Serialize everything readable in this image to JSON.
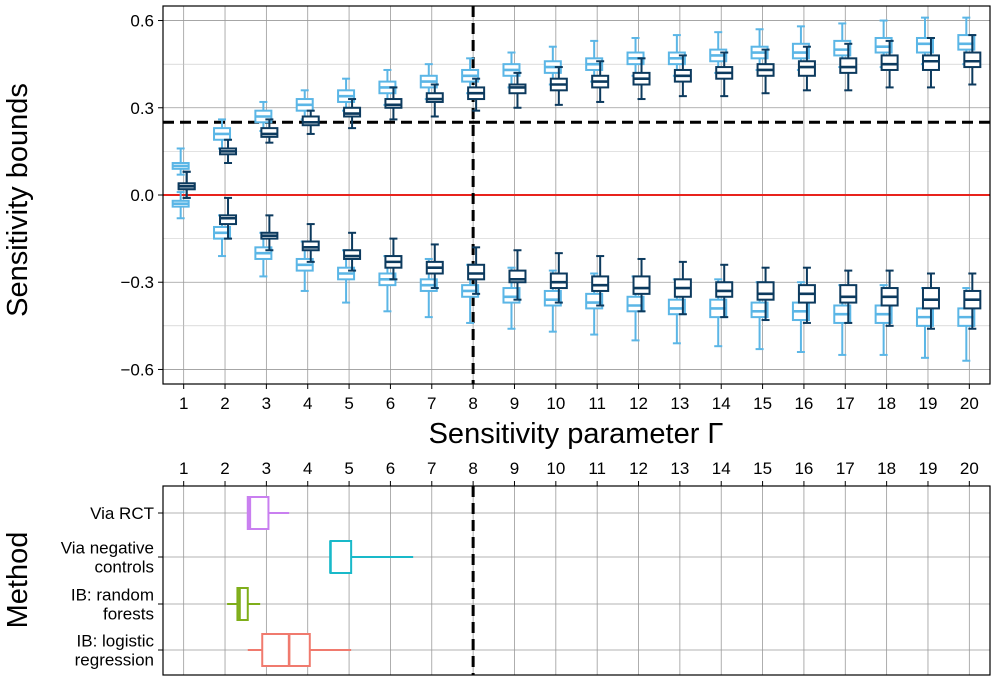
{
  "chart_data": [
    {
      "type": "boxplot",
      "title": "",
      "xlabel": "Sensitivity parameter Γ",
      "ylabel": "Sensitivity bounds",
      "categories": [
        1,
        2,
        3,
        4,
        5,
        6,
        7,
        8,
        9,
        10,
        11,
        12,
        13,
        14,
        15,
        16,
        17,
        18,
        19,
        20
      ],
      "ylim": [
        -0.65,
        0.65
      ],
      "yticks": [
        -0.6,
        -0.3,
        0.0,
        0.3,
        0.6
      ],
      "ytick_labels": [
        "−0.6",
        "−0.3",
        "0.0",
        "0.3",
        "0.6"
      ],
      "grid": true,
      "reference_lines": [
        {
          "orientation": "horizontal",
          "value": 0.25,
          "style": "dashed",
          "color": "#000000"
        },
        {
          "orientation": "horizontal",
          "value": 0.0,
          "style": "solid",
          "color": "#e8231c"
        },
        {
          "orientation": "vertical",
          "value": 8,
          "style": "dashed",
          "color": "#000000"
        }
      ],
      "series": [
        {
          "color": "#5bb6e6",
          "values": [
            {
              "upper": [
                0.07,
                0.09,
                0.1,
                0.11,
                0.16
              ],
              "lower": [
                -0.08,
                -0.04,
                -0.03,
                -0.02,
                0.01
              ]
            },
            {
              "upper": [
                0.16,
                0.19,
                0.21,
                0.23,
                0.26
              ],
              "lower": [
                -0.21,
                -0.15,
                -0.13,
                -0.11,
                -0.07
              ]
            },
            {
              "upper": [
                0.22,
                0.25,
                0.27,
                0.29,
                0.32
              ],
              "lower": [
                -0.28,
                -0.22,
                -0.2,
                -0.18,
                -0.13
              ]
            },
            {
              "upper": [
                0.26,
                0.29,
                0.31,
                0.33,
                0.36
              ],
              "lower": [
                -0.33,
                -0.26,
                -0.24,
                -0.22,
                -0.16
              ]
            },
            {
              "upper": [
                0.29,
                0.32,
                0.34,
                0.36,
                0.4
              ],
              "lower": [
                -0.37,
                -0.29,
                -0.27,
                -0.25,
                -0.19
              ]
            },
            {
              "upper": [
                0.31,
                0.35,
                0.37,
                0.39,
                0.43
              ],
              "lower": [
                -0.4,
                -0.31,
                -0.29,
                -0.27,
                -0.21
              ]
            },
            {
              "upper": [
                0.33,
                0.37,
                0.39,
                0.41,
                0.45
              ],
              "lower": [
                -0.42,
                -0.33,
                -0.31,
                -0.29,
                -0.22
              ]
            },
            {
              "upper": [
                0.35,
                0.39,
                0.41,
                0.43,
                0.47
              ],
              "lower": [
                -0.44,
                -0.35,
                -0.33,
                -0.31,
                -0.24
              ]
            },
            {
              "upper": [
                0.37,
                0.41,
                0.43,
                0.45,
                0.49
              ],
              "lower": [
                -0.46,
                -0.37,
                -0.35,
                -0.32,
                -0.25
              ]
            },
            {
              "upper": [
                0.38,
                0.42,
                0.44,
                0.46,
                0.51
              ],
              "lower": [
                -0.47,
                -0.38,
                -0.36,
                -0.33,
                -0.26
              ]
            },
            {
              "upper": [
                0.39,
                0.43,
                0.45,
                0.47,
                0.53
              ],
              "lower": [
                -0.48,
                -0.39,
                -0.37,
                -0.34,
                -0.27
              ]
            },
            {
              "upper": [
                0.41,
                0.45,
                0.47,
                0.49,
                0.54
              ],
              "lower": [
                -0.5,
                -0.4,
                -0.38,
                -0.35,
                -0.28
              ]
            },
            {
              "upper": [
                0.41,
                0.45,
                0.47,
                0.49,
                0.55
              ],
              "lower": [
                -0.51,
                -0.41,
                -0.39,
                -0.36,
                -0.29
              ]
            },
            {
              "upper": [
                0.42,
                0.46,
                0.48,
                0.5,
                0.56
              ],
              "lower": [
                -0.52,
                -0.42,
                -0.39,
                -0.36,
                -0.29
              ]
            },
            {
              "upper": [
                0.43,
                0.47,
                0.49,
                0.51,
                0.57
              ],
              "lower": [
                -0.53,
                -0.42,
                -0.4,
                -0.37,
                -0.3
              ]
            },
            {
              "upper": [
                0.43,
                0.47,
                0.49,
                0.52,
                0.58
              ],
              "lower": [
                -0.54,
                -0.43,
                -0.4,
                -0.37,
                -0.3
              ]
            },
            {
              "upper": [
                0.44,
                0.48,
                0.5,
                0.53,
                0.59
              ],
              "lower": [
                -0.55,
                -0.44,
                -0.41,
                -0.38,
                -0.31
              ]
            },
            {
              "upper": [
                0.44,
                0.49,
                0.51,
                0.54,
                0.6
              ],
              "lower": [
                -0.55,
                -0.44,
                -0.41,
                -0.38,
                -0.31
              ]
            },
            {
              "upper": [
                0.45,
                0.49,
                0.52,
                0.54,
                0.61
              ],
              "lower": [
                -0.56,
                -0.45,
                -0.42,
                -0.39,
                -0.32
              ]
            },
            {
              "upper": [
                0.45,
                0.5,
                0.52,
                0.55,
                0.61
              ],
              "lower": [
                -0.57,
                -0.45,
                -0.42,
                -0.39,
                -0.32
              ]
            }
          ]
        },
        {
          "color": "#0c3a5e",
          "values": [
            {
              "upper": [
                -0.01,
                0.02,
                0.03,
                0.04,
                0.08
              ],
              "lower": [
                -0.01,
                0.02,
                0.03,
                0.04,
                0.08
              ]
            },
            {
              "upper": [
                0.11,
                0.14,
                0.15,
                0.16,
                0.19
              ],
              "lower": [
                -0.15,
                -0.1,
                -0.08,
                -0.07,
                -0.01
              ]
            },
            {
              "upper": [
                0.18,
                0.2,
                0.21,
                0.23,
                0.26
              ],
              "lower": [
                -0.19,
                -0.15,
                -0.14,
                -0.13,
                -0.07
              ]
            },
            {
              "upper": [
                0.21,
                0.24,
                0.25,
                0.27,
                0.29
              ],
              "lower": [
                -0.23,
                -0.19,
                -0.18,
                -0.16,
                -0.1
              ]
            },
            {
              "upper": [
                0.23,
                0.27,
                0.28,
                0.3,
                0.33
              ],
              "lower": [
                -0.26,
                -0.22,
                -0.21,
                -0.19,
                -0.13
              ]
            },
            {
              "upper": [
                0.26,
                0.3,
                0.31,
                0.33,
                0.37
              ],
              "lower": [
                -0.29,
                -0.25,
                -0.23,
                -0.21,
                -0.15
              ]
            },
            {
              "upper": [
                0.27,
                0.32,
                0.33,
                0.35,
                0.38
              ],
              "lower": [
                -0.32,
                -0.27,
                -0.25,
                -0.23,
                -0.17
              ]
            },
            {
              "upper": [
                0.29,
                0.33,
                0.35,
                0.37,
                0.4
              ],
              "lower": [
                -0.34,
                -0.29,
                -0.27,
                -0.24,
                -0.18
              ]
            },
            {
              "upper": [
                0.3,
                0.35,
                0.37,
                0.38,
                0.42
              ],
              "lower": [
                -0.36,
                -0.3,
                -0.29,
                -0.26,
                -0.19
              ]
            },
            {
              "upper": [
                0.31,
                0.36,
                0.38,
                0.4,
                0.44
              ],
              "lower": [
                -0.37,
                -0.32,
                -0.3,
                -0.27,
                -0.2
              ]
            },
            {
              "upper": [
                0.32,
                0.37,
                0.39,
                0.41,
                0.46
              ],
              "lower": [
                -0.38,
                -0.33,
                -0.31,
                -0.28,
                -0.21
              ]
            },
            {
              "upper": [
                0.33,
                0.38,
                0.4,
                0.42,
                0.47
              ],
              "lower": [
                -0.4,
                -0.34,
                -0.32,
                -0.28,
                -0.22
              ]
            },
            {
              "upper": [
                0.34,
                0.39,
                0.41,
                0.43,
                0.48
              ],
              "lower": [
                -0.41,
                -0.35,
                -0.32,
                -0.29,
                -0.23
              ]
            },
            {
              "upper": [
                0.34,
                0.4,
                0.42,
                0.44,
                0.49
              ],
              "lower": [
                -0.42,
                -0.35,
                -0.33,
                -0.3,
                -0.24
              ]
            },
            {
              "upper": [
                0.35,
                0.41,
                0.43,
                0.45,
                0.5
              ],
              "lower": [
                -0.43,
                -0.36,
                -0.34,
                -0.3,
                -0.25
              ]
            },
            {
              "upper": [
                0.36,
                0.41,
                0.44,
                0.46,
                0.51
              ],
              "lower": [
                -0.44,
                -0.37,
                -0.34,
                -0.31,
                -0.25
              ]
            },
            {
              "upper": [
                0.36,
                0.42,
                0.44,
                0.47,
                0.52
              ],
              "lower": [
                -0.44,
                -0.37,
                -0.35,
                -0.31,
                -0.26
              ]
            },
            {
              "upper": [
                0.37,
                0.43,
                0.45,
                0.48,
                0.53
              ],
              "lower": [
                -0.45,
                -0.38,
                -0.35,
                -0.32,
                -0.26
              ]
            },
            {
              "upper": [
                0.37,
                0.43,
                0.46,
                0.48,
                0.54
              ],
              "lower": [
                -0.46,
                -0.39,
                -0.36,
                -0.32,
                -0.27
              ]
            },
            {
              "upper": [
                0.38,
                0.44,
                0.46,
                0.49,
                0.55
              ],
              "lower": [
                -0.46,
                -0.39,
                -0.36,
                -0.33,
                -0.27
              ]
            }
          ]
        }
      ]
    },
    {
      "type": "boxplot",
      "orientation": "horizontal",
      "title": "",
      "xlabel": "",
      "ylabel": "Method",
      "xlim": [
        0.5,
        20.5
      ],
      "xticks": [
        1,
        2,
        3,
        4,
        5,
        6,
        7,
        8,
        9,
        10,
        11,
        12,
        13,
        14,
        15,
        16,
        17,
        18,
        19,
        20
      ],
      "xtick_position": "top",
      "grid": true,
      "reference_lines": [
        {
          "orientation": "vertical",
          "value": 8,
          "style": "dashed",
          "color": "#000000"
        }
      ],
      "categories": [
        {
          "label_lines": [
            "Via RCT"
          ],
          "color": "#c97ff0",
          "stats": [
            2.55,
            2.55,
            2.6,
            3.05,
            3.55
          ]
        },
        {
          "label_lines": [
            "Via negative",
            "controls"
          ],
          "color": "#19b9c9",
          "stats": [
            4.55,
            4.55,
            4.55,
            5.05,
            6.55
          ]
        },
        {
          "label_lines": [
            "IB: random",
            "forests"
          ],
          "color": "#7fae1a",
          "stats": [
            2.05,
            2.3,
            2.35,
            2.55,
            2.85
          ]
        },
        {
          "label_lines": [
            "IB: logistic",
            "regression"
          ],
          "color": "#f07a6e",
          "stats": [
            2.55,
            2.9,
            3.55,
            4.05,
            5.05
          ]
        }
      ]
    }
  ]
}
